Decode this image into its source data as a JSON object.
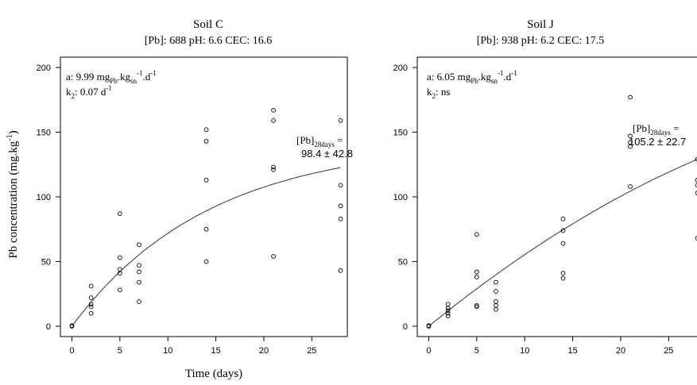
{
  "figure": {
    "shared_xlabel": "Time (days)",
    "shared_ylabel_main": "Pb concentration (mg.kg",
    "shared_ylabel_sup": "-1",
    "shared_ylabel_end": ")"
  },
  "panels": [
    {
      "title": "Soil C",
      "subtitle": "[Pb]: 688  pH: 6.6  CEC: 16.6",
      "annot_a_prefix": "a: 9.99 mg",
      "annot_a_sub1": "Pb",
      "annot_a_mid": ".kg",
      "annot_a_sub2": "sn",
      "annot_a_sup1": "-1",
      "annot_a_mid2": ".d",
      "annot_a_sup2": "-1",
      "annot_k_prefix": "k",
      "annot_k_sub": "2",
      "annot_k_value": ": 0.07 d",
      "annot_k_sup": "-1",
      "pb28_prefix": "[Pb]",
      "pb28_sub": "28days",
      "pb28_eq": " =",
      "pb28_value": "98.4 ± 42.8"
    },
    {
      "title": "Soil J",
      "subtitle": "[Pb]: 938  pH: 6.2  CEC: 17.5",
      "annot_a_prefix": "a: 6.05 mg",
      "annot_a_sub1": "Pb",
      "annot_a_mid": ".kg",
      "annot_a_sub2": "sn",
      "annot_a_sup1": "-1",
      "annot_a_mid2": ".d",
      "annot_a_sup2": "-1",
      "annot_k_prefix": "k",
      "annot_k_sub": "2",
      "annot_k_value": ": ns",
      "annot_k_sup": "",
      "pb28_prefix": "[Pb]",
      "pb28_sub": "28days",
      "pb28_eq": " =",
      "pb28_value": "105.2 ± 22.7"
    }
  ],
  "chart_data": [
    {
      "type": "scatter",
      "title": "Soil C",
      "xlabel": "Time (days)",
      "ylabel": "Pb concentration (mg.kg-1)",
      "xlim": [
        -1.2,
        28.7
      ],
      "ylim": [
        -8,
        208
      ],
      "xticks": [
        0,
        5,
        10,
        15,
        20,
        25
      ],
      "yticks": [
        0,
        50,
        100,
        150,
        200
      ],
      "grid": false,
      "points": [
        {
          "x": 0,
          "y": 0
        },
        {
          "x": 0,
          "y": 0.5
        },
        {
          "x": 2,
          "y": 31
        },
        {
          "x": 2,
          "y": 22
        },
        {
          "x": 2,
          "y": 17
        },
        {
          "x": 2,
          "y": 15
        },
        {
          "x": 2,
          "y": 10
        },
        {
          "x": 5,
          "y": 87
        },
        {
          "x": 5,
          "y": 53
        },
        {
          "x": 5,
          "y": 44
        },
        {
          "x": 5,
          "y": 41
        },
        {
          "x": 5,
          "y": 28
        },
        {
          "x": 7,
          "y": 63
        },
        {
          "x": 7,
          "y": 47
        },
        {
          "x": 7,
          "y": 42
        },
        {
          "x": 7,
          "y": 34
        },
        {
          "x": 7,
          "y": 19
        },
        {
          "x": 14,
          "y": 152
        },
        {
          "x": 14,
          "y": 143
        },
        {
          "x": 14,
          "y": 113
        },
        {
          "x": 14,
          "y": 75
        },
        {
          "x": 14,
          "y": 50
        },
        {
          "x": 21,
          "y": 167
        },
        {
          "x": 21,
          "y": 159
        },
        {
          "x": 21,
          "y": 123
        },
        {
          "x": 21,
          "y": 121
        },
        {
          "x": 21,
          "y": 54
        },
        {
          "x": 28,
          "y": 159
        },
        {
          "x": 28,
          "y": 109
        },
        {
          "x": 28,
          "y": 93
        },
        {
          "x": 28,
          "y": 83
        },
        {
          "x": 28,
          "y": 43
        }
      ],
      "fit": {
        "a": 9.99,
        "k2": 0.07
      }
    },
    {
      "type": "scatter",
      "title": "Soil J",
      "xlabel": "",
      "ylabel": "",
      "xlim": [
        -1.2,
        28.7
      ],
      "ylim": [
        -8,
        208
      ],
      "xticks": [
        0,
        5,
        10,
        15,
        20,
        25
      ],
      "yticks": [
        0,
        50,
        100,
        150,
        200
      ],
      "grid": false,
      "points": [
        {
          "x": 0,
          "y": 0
        },
        {
          "x": 0,
          "y": 0.5
        },
        {
          "x": 2,
          "y": 17
        },
        {
          "x": 2,
          "y": 14
        },
        {
          "x": 2,
          "y": 12
        },
        {
          "x": 2,
          "y": 10
        },
        {
          "x": 2,
          "y": 8
        },
        {
          "x": 5,
          "y": 71
        },
        {
          "x": 5,
          "y": 42
        },
        {
          "x": 5,
          "y": 38
        },
        {
          "x": 5,
          "y": 16
        },
        {
          "x": 5,
          "y": 15
        },
        {
          "x": 7,
          "y": 34
        },
        {
          "x": 7,
          "y": 27
        },
        {
          "x": 7,
          "y": 19
        },
        {
          "x": 7,
          "y": 16
        },
        {
          "x": 7,
          "y": 13
        },
        {
          "x": 14,
          "y": 83
        },
        {
          "x": 14,
          "y": 74
        },
        {
          "x": 14,
          "y": 64
        },
        {
          "x": 14,
          "y": 41
        },
        {
          "x": 14,
          "y": 37
        },
        {
          "x": 21,
          "y": 177
        },
        {
          "x": 21,
          "y": 147
        },
        {
          "x": 21,
          "y": 142
        },
        {
          "x": 21,
          "y": 139
        },
        {
          "x": 21,
          "y": 108
        },
        {
          "x": 28,
          "y": 129
        },
        {
          "x": 28,
          "y": 113
        },
        {
          "x": 28,
          "y": 109
        },
        {
          "x": 28,
          "y": 103
        },
        {
          "x": 28,
          "y": 68
        }
      ],
      "fit": {
        "a": 6.05,
        "k2": 0.0
      }
    }
  ]
}
